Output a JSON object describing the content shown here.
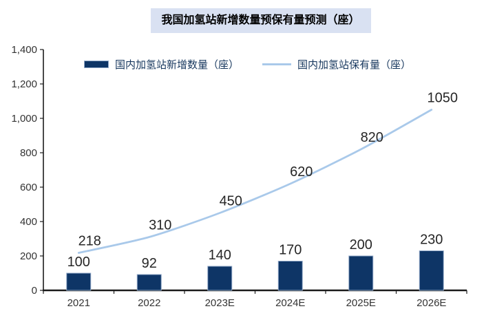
{
  "title": "我国加氢站新增数量预保有量预测（座）",
  "legend": [
    {
      "label": "国内加氢站新增数量（座）",
      "swatch": "bar-swatch"
    },
    {
      "label": "国内加氢站保有量（座）",
      "swatch": "line-swatch"
    }
  ],
  "colors": {
    "title_bg": "#d9e1f2",
    "bar_fill": "#0e3566",
    "bar_border": "#93aac9",
    "line": "#a9c9ea",
    "axis": "#1a1a1a",
    "tick_label": "#333333",
    "data_label": "#262626",
    "legend_text": "#17375e"
  },
  "chart_data": {
    "type": "bar",
    "subtype": "bar+line combo",
    "title": "我国加氢站新增数量预保有量预测（座）",
    "categories": [
      "2021",
      "2022",
      "2023E",
      "2024E",
      "2025E",
      "2026E"
    ],
    "series": [
      {
        "name": "国内加氢站新增数量（座）",
        "type": "bar",
        "values": [
          100,
          92,
          140,
          170,
          200,
          230
        ]
      },
      {
        "name": "国内加氢站保有量（座）",
        "type": "line",
        "values": [
          218,
          310,
          450,
          620,
          820,
          1050
        ]
      }
    ],
    "xlabel": "",
    "ylabel": "",
    "ylim": [
      0,
      1400
    ],
    "ytick_step": 200,
    "ytick_labels": [
      "0",
      "200",
      "400",
      "600",
      "800",
      "1,000",
      "1,200",
      "1,400"
    ],
    "grid": false,
    "legend_position": "top",
    "data_labels_shown": true
  }
}
